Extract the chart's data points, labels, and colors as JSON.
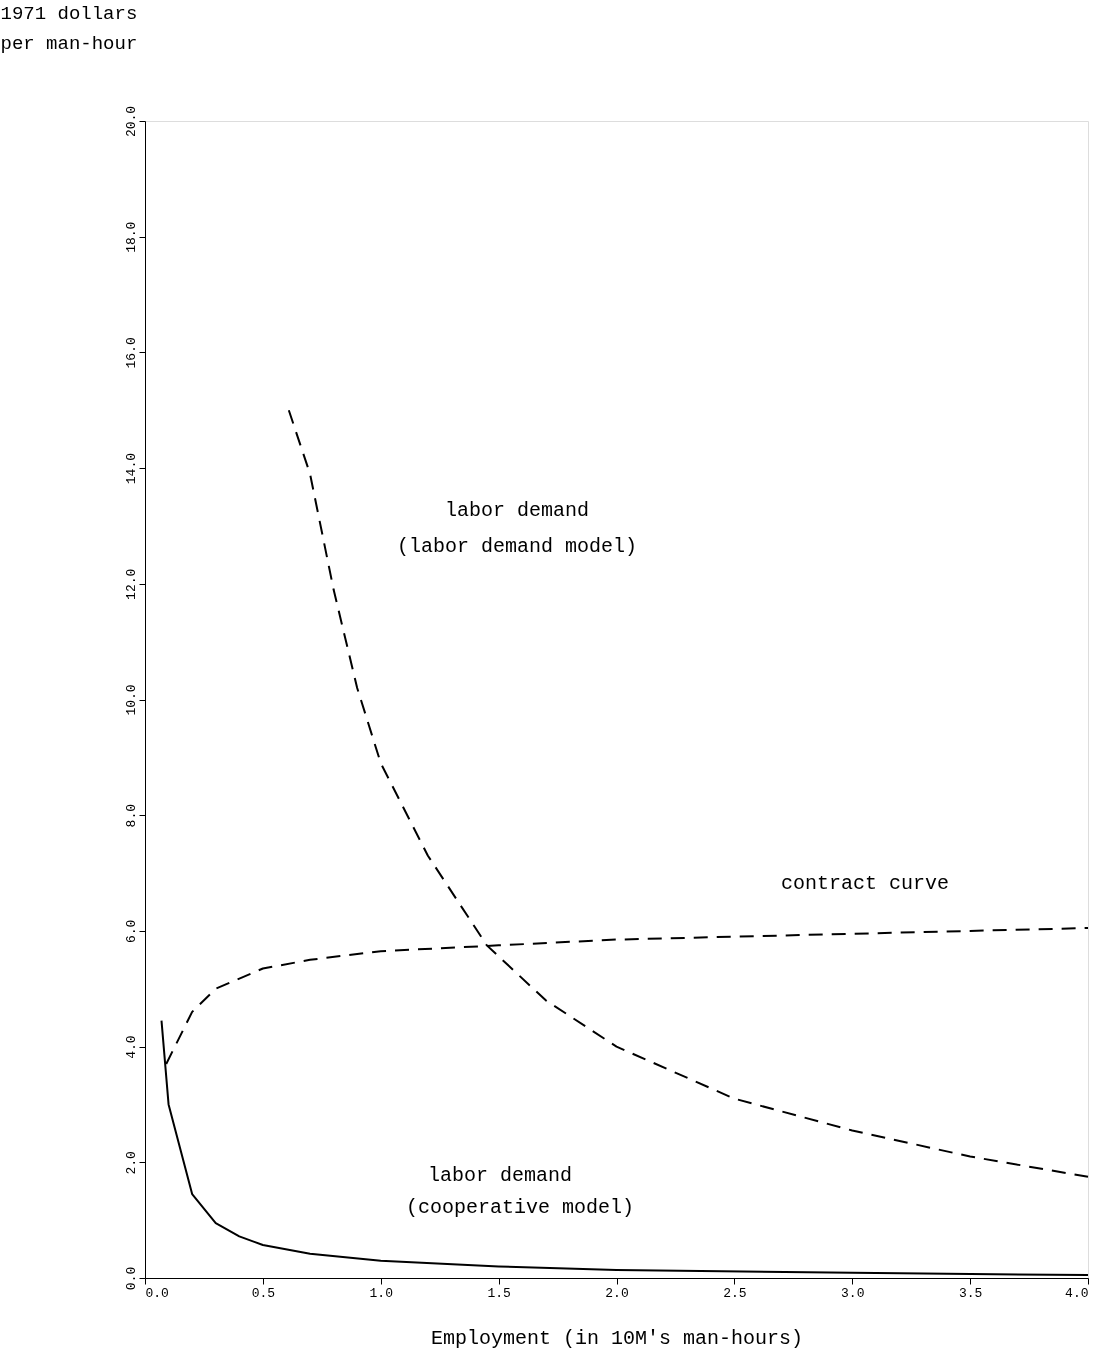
{
  "chart_data": {
    "type": "line",
    "xlabel": "Employment (in 10M's man-hours)",
    "ylabel": "1971 dollars\nper man-hour",
    "xlim": [
      0,
      4
    ],
    "ylim": [
      0,
      20
    ],
    "xticks": [
      {
        "value": 0,
        "label": "0.0"
      },
      {
        "value": 0.5,
        "label": "0.5"
      },
      {
        "value": 1,
        "label": "1.0"
      },
      {
        "value": 1.5,
        "label": "1.5"
      },
      {
        "value": 2,
        "label": "2.0"
      },
      {
        "value": 2.5,
        "label": "2.5"
      },
      {
        "value": 3,
        "label": "3.0"
      },
      {
        "value": 3.5,
        "label": "3.5"
      },
      {
        "value": 4,
        "label": "4.0"
      }
    ],
    "yticks": [
      {
        "value": 0,
        "label": "0.0"
      },
      {
        "value": 2,
        "label": "2.0"
      },
      {
        "value": 4,
        "label": "4.0"
      },
      {
        "value": 6,
        "label": "6.0"
      },
      {
        "value": 8,
        "label": "8.0"
      },
      {
        "value": 10,
        "label": "10.0"
      },
      {
        "value": 12,
        "label": "12.0"
      },
      {
        "value": 14,
        "label": "14.0"
      },
      {
        "value": 16,
        "label": "16.0"
      },
      {
        "value": 18,
        "label": "18.0"
      },
      {
        "value": 20,
        "label": "20.0"
      }
    ],
    "grid": false,
    "marker": "none",
    "series": [
      {
        "color": "#000000",
        "line_style": "dashed",
        "x": [
          0.61,
          0.7,
          0.8,
          0.9,
          1.0,
          1.2,
          1.45,
          1.7,
          2.0,
          2.5,
          3.0,
          3.5,
          4.0
        ],
        "values": [
          15.0,
          13.9,
          11.9,
          10.2,
          8.9,
          7.3,
          5.75,
          4.8,
          4.0,
          3.1,
          2.55,
          2.1,
          1.75
        ]
      },
      {
        "color": "#000000",
        "line_style": "dashed",
        "x": [
          0.09,
          0.2,
          0.3,
          0.5,
          0.7,
          1.0,
          1.5,
          2.0,
          2.5,
          3.0,
          3.5,
          4.0
        ],
        "values": [
          3.7,
          4.6,
          5.0,
          5.35,
          5.5,
          5.65,
          5.75,
          5.85,
          5.9,
          5.95,
          6.0,
          6.05
        ]
      },
      {
        "color": "#000000",
        "line_style": "solid",
        "x": [
          0.07,
          0.1,
          0.2,
          0.3,
          0.4,
          0.5,
          0.7,
          1.0,
          1.5,
          2.0,
          3.0,
          4.0
        ],
        "values": [
          4.45,
          3.0,
          1.45,
          0.95,
          0.72,
          0.57,
          0.42,
          0.3,
          0.2,
          0.14,
          0.09,
          0.05
        ]
      }
    ],
    "annotations": [
      "labor demand",
      "(labor demand model)",
      "contract curve",
      "labor demand",
      "(cooperative model)"
    ]
  }
}
